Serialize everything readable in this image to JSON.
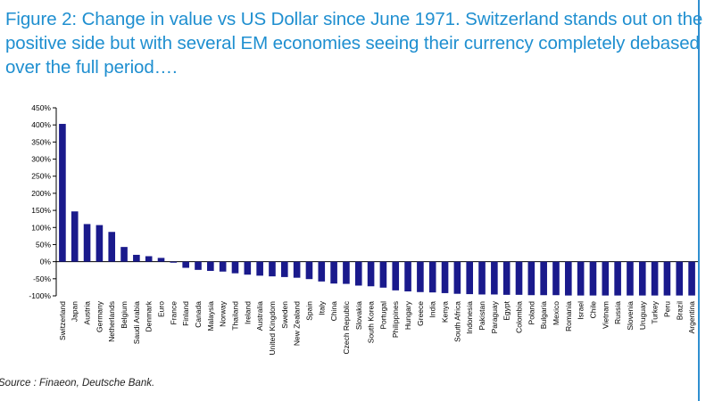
{
  "title": "Figure 2: Change in value vs US Dollar since June 1971. Switzerland stands out on the positive side but with several EM economies seeing their currency completely debased over the full period….",
  "source": "Source : Finaeon, Deutsche Bank.",
  "colors": {
    "title": "#1f8fd0",
    "bar": "#1a1a8c",
    "axis": "#000000",
    "rule": "#2f8fd0"
  },
  "chart_data": {
    "type": "bar",
    "categories": [
      "Switzerland",
      "Japan",
      "Austria",
      "Germany",
      "Netherlands",
      "Belgium",
      "Saudi Arabia",
      "Denmark",
      "Euro",
      "France",
      "Finland",
      "Canada",
      "Malaysia",
      "Norway",
      "Thailand",
      "Ireland",
      "Australia",
      "United Kingdom",
      "Sweden",
      "New Zealand",
      "Spain",
      "Italy",
      "China",
      "Czech Republic",
      "Slovakia",
      "South Korea",
      "Portugal",
      "Philippines",
      "Hungary",
      "Greece",
      "India",
      "Kenya",
      "South Africa",
      "Indonesia",
      "Pakistan",
      "Paraguay",
      "Egypt",
      "Colombia",
      "Poland",
      "Bulgaria",
      "Mexico",
      "Romania",
      "Israel",
      "Chile",
      "Vietnam",
      "Russia",
      "Slovenia",
      "Uruguay",
      "Turkey",
      "Peru",
      "Brazil",
      "Argentina"
    ],
    "values": [
      403,
      147,
      110,
      107,
      87,
      43,
      20,
      16,
      11,
      -3,
      -18,
      -24,
      -27,
      -29,
      -34,
      -38,
      -41,
      -43,
      -45,
      -47,
      -51,
      -58,
      -64,
      -65,
      -70,
      -72,
      -76,
      -84,
      -87,
      -89,
      -90,
      -92,
      -94,
      -95,
      -96,
      -96,
      -97,
      -97,
      -98,
      -98,
      -98,
      -99,
      -99,
      -99,
      -99,
      -99,
      -99,
      -99,
      -99,
      -99,
      -99,
      -99
    ],
    "ylim": [
      -100,
      450
    ],
    "yticks": [
      -100,
      -50,
      0,
      50,
      100,
      150,
      200,
      250,
      300,
      350,
      400,
      450
    ],
    "ytick_suffix": "%",
    "grid": false
  }
}
